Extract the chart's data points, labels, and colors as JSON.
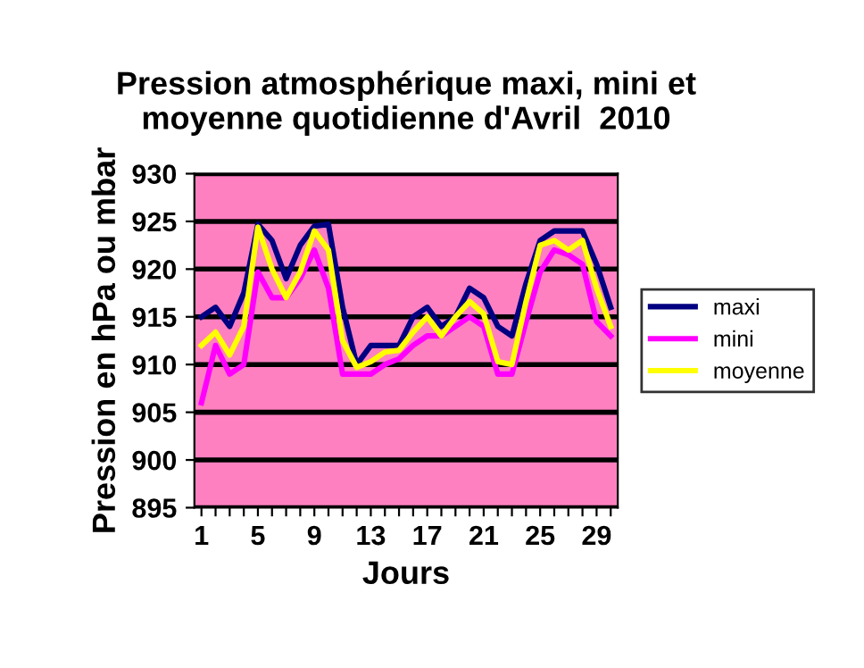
{
  "chart_data": {
    "type": "line",
    "title": "Pression atmosphérique maxi, mini et\nmoyenne quotidienne d'Avril  2010",
    "xlabel": "Jours",
    "ylabel": "Pression en hPa ou mbar",
    "categories": [
      "1",
      null,
      null,
      null,
      "5",
      null,
      null,
      null,
      "9",
      null,
      null,
      null,
      "13",
      null,
      null,
      null,
      "17",
      null,
      null,
      null,
      "21",
      null,
      null,
      null,
      "25",
      null,
      null,
      null,
      "29",
      null
    ],
    "series": [
      {
        "name": "maxi",
        "color": "#000080",
        "values": [
          915,
          916,
          914,
          917.5,
          924.7,
          923,
          919,
          922.5,
          924.5,
          924.7,
          916,
          910,
          912,
          912,
          912,
          915,
          916,
          914,
          915,
          918,
          917,
          914,
          913,
          918.5,
          923,
          924,
          924,
          924,
          920.5,
          916
        ]
      },
      {
        "name": "mini",
        "color": "#ff00ff",
        "values": [
          906,
          912,
          909,
          910,
          919.7,
          917,
          917,
          919,
          922,
          918,
          909,
          909,
          909,
          910,
          910.6,
          912,
          913,
          913,
          914,
          915,
          914,
          909,
          909,
          914.5,
          919.7,
          922,
          921.5,
          920.5,
          914.5,
          913
        ]
      },
      {
        "name": "moyenne",
        "color": "#ffff00",
        "values": [
          912,
          913.4,
          911,
          914,
          924.4,
          920,
          917,
          919.7,
          924,
          922,
          912.5,
          909.7,
          910.3,
          911.3,
          911.5,
          913.4,
          915,
          913,
          915,
          916.6,
          915.3,
          910.3,
          910,
          916.6,
          922.5,
          923,
          922,
          923,
          918,
          914
        ]
      }
    ],
    "ylim": [
      895,
      930
    ],
    "yticks": [
      895,
      900,
      905,
      910,
      915,
      920,
      925,
      930
    ],
    "grid": "y",
    "legend": "right"
  }
}
